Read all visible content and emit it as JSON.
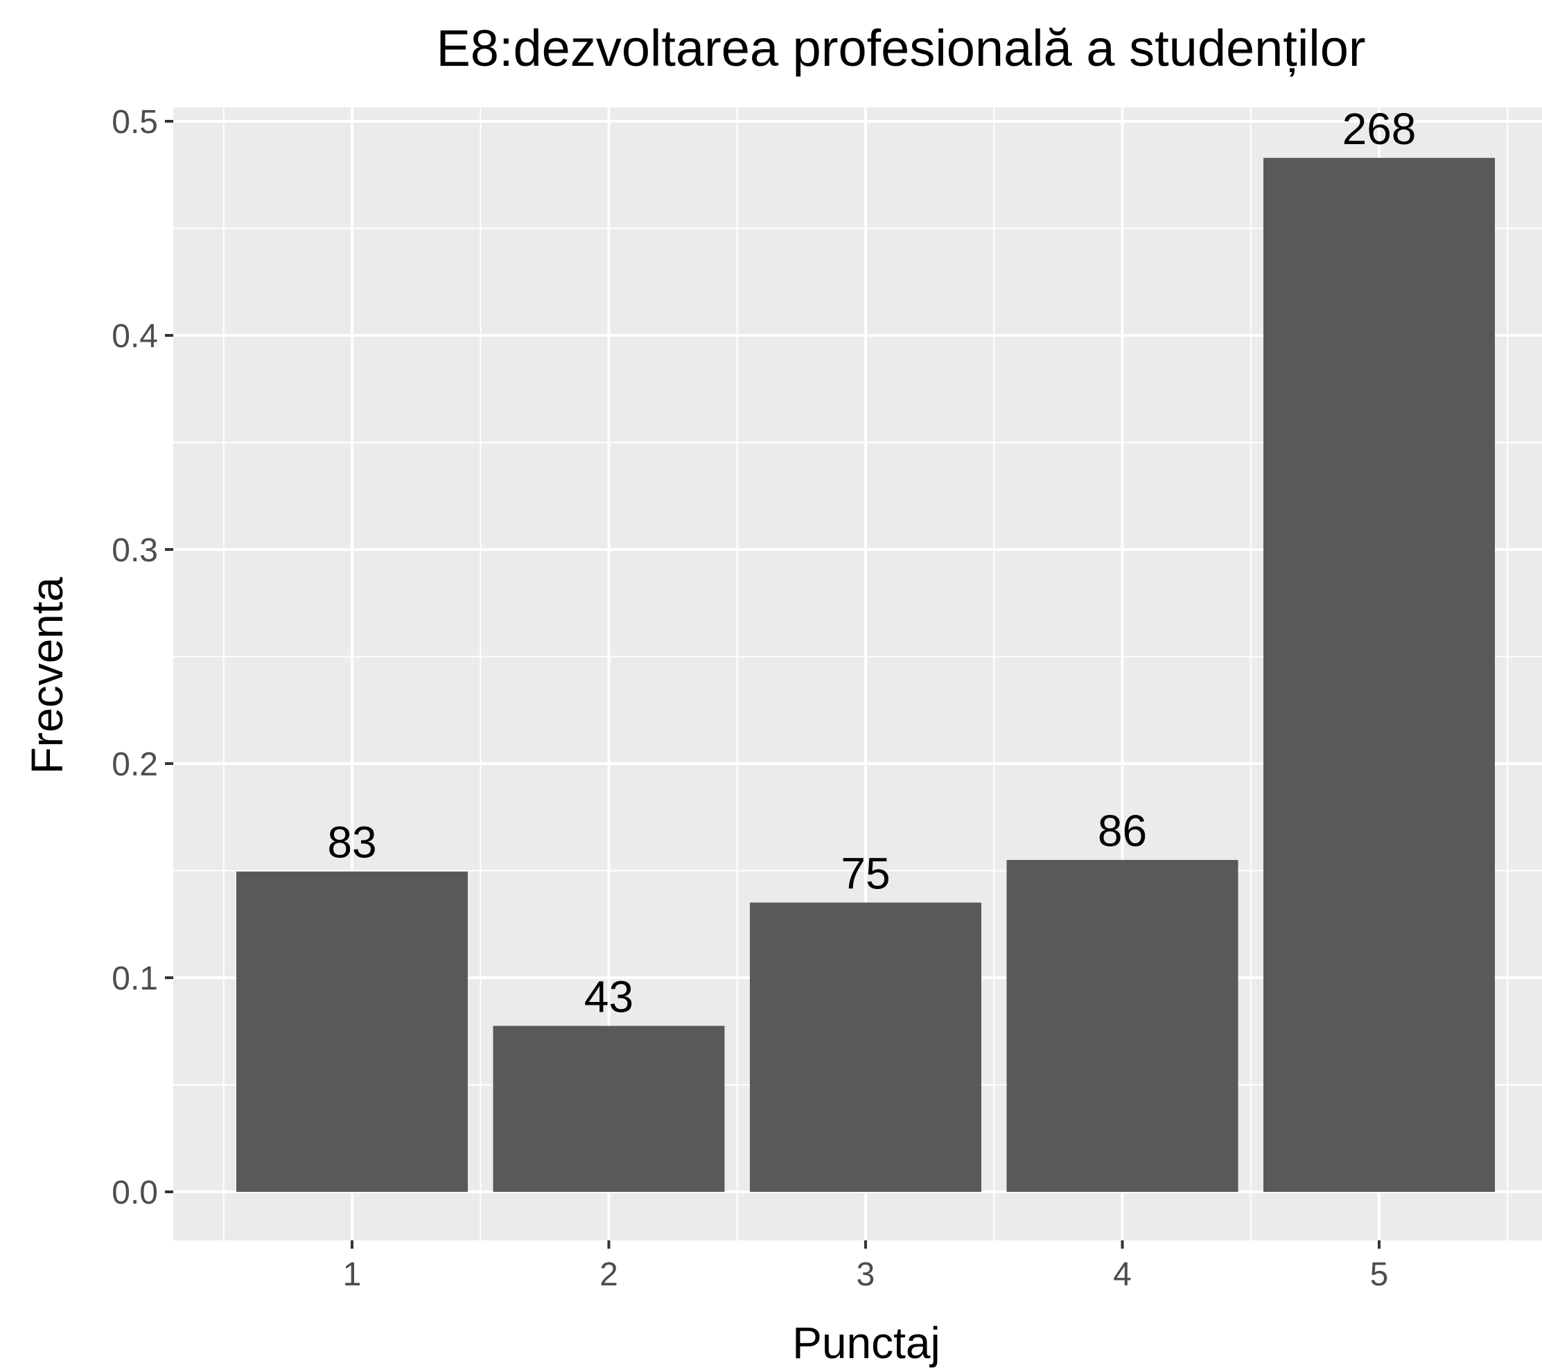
{
  "chart_data": {
    "type": "bar",
    "title": "E8:dezvoltarea profesională a studenților",
    "xlabel": "Punctaj",
    "ylabel": "Frecventa",
    "categories": [
      "1",
      "2",
      "3",
      "4",
      "5"
    ],
    "values": [
      0.1496,
      0.0775,
      0.1351,
      0.155,
      0.4829
    ],
    "data_labels": [
      "83",
      "43",
      "75",
      "86",
      "268"
    ],
    "ylim": [
      0,
      0.5
    ],
    "yticks": [
      "0.0",
      "0.1",
      "0.2",
      "0.3",
      "0.4",
      "0.5"
    ],
    "grid": true,
    "legend": "none",
    "colors": {
      "bar": "#595959",
      "panel": "#ebebeb",
      "grid": "#ffffff"
    }
  }
}
